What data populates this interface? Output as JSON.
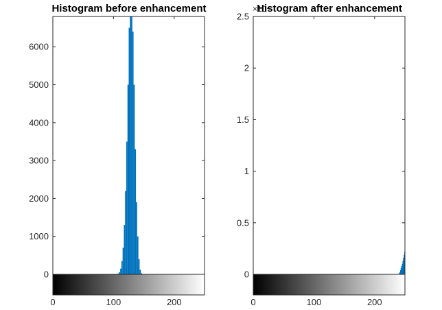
{
  "chart_data": [
    {
      "type": "bar",
      "title": "Histogram before enhancement",
      "xlabel": "",
      "ylabel": "",
      "xlim": [
        0,
        250
      ],
      "ylim": [
        0,
        6800
      ],
      "x_ticks": [
        0,
        100,
        200
      ],
      "x_tick_labels": [
        "0",
        "100",
        "200"
      ],
      "y_ticks": [
        0,
        1000,
        2000,
        3000,
        4000,
        5000,
        6000
      ],
      "y_tick_labels": [
        "0",
        "1000",
        "2000",
        "3000",
        "4000",
        "5000",
        "6000"
      ],
      "colorbar": "grayscale 0-255 gradient below axis",
      "bar_color": "#0072BD",
      "x": [
        108,
        110,
        112,
        114,
        116,
        118,
        120,
        122,
        124,
        126,
        128,
        130,
        132,
        134,
        136,
        138,
        140,
        142,
        144,
        146
      ],
      "values": [
        20,
        60,
        150,
        350,
        700,
        1300,
        2200,
        3500,
        5000,
        6500,
        7000,
        7000,
        6400,
        5000,
        3300,
        1900,
        1000,
        400,
        120,
        30
      ]
    },
    {
      "type": "bar",
      "title": "Histogram after enhancement",
      "xlabel": "",
      "ylabel": "",
      "xlim": [
        0,
        250
      ],
      "ylim": [
        0,
        2.5
      ],
      "y_exponent": "×10⁴",
      "x_ticks": [
        0,
        100,
        200
      ],
      "x_tick_labels": [
        "0",
        "100",
        "200"
      ],
      "y_ticks": [
        0,
        0.5,
        1,
        1.5,
        2,
        2.5
      ],
      "y_tick_labels": [
        "0",
        "0.5",
        "1",
        "1.5",
        "2",
        "2.5"
      ],
      "colorbar": "grayscale 0-255 gradient below axis",
      "bar_color": "#0072BD",
      "x": [
        241,
        242,
        243,
        244,
        245,
        246,
        247,
        248,
        249,
        250
      ],
      "values": [
        0.01,
        0.02,
        0.04,
        0.06,
        0.08,
        0.1,
        0.13,
        0.16,
        0.19,
        0.22
      ]
    }
  ]
}
